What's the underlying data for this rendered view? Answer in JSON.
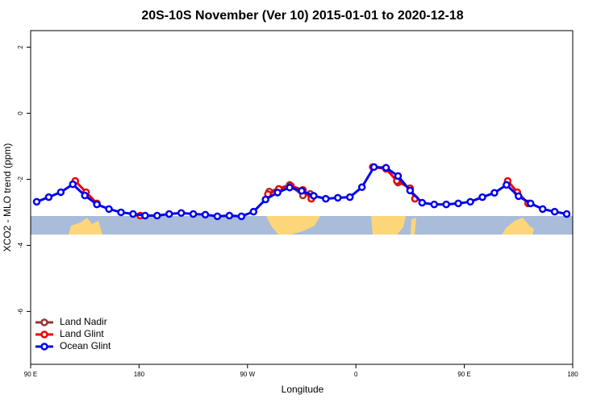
{
  "chart_data": {
    "type": "line",
    "title": "20S-10S November (Ver 10)   2015-01-01 to 2020-12-18",
    "x_label": "Longitude",
    "y_label": "XCO2 - MLO trend (ppm)",
    "xlim": [
      90,
      540
    ],
    "xticks": [
      {
        "value": 90,
        "label": "90 E"
      },
      180,
      {
        "value": 270,
        "label": "90 W"
      },
      {
        "value": 360,
        "label": "0"
      },
      {
        "value": 450,
        "label": "90 E"
      },
      {
        "value": 540,
        "label": "180"
      }
    ],
    "ylim": [
      -7.6,
      2.5
    ],
    "yticks": [
      -6,
      -4,
      -2,
      0,
      2
    ],
    "grid": false,
    "legend": "bottom-left",
    "series": [
      {
        "name": "Land Nadir",
        "color": "#993333",
        "x": [
          288,
          305,
          316,
          322,
          350,
          395
        ],
        "values": [
          -2.37,
          -2.17,
          -2.49,
          -2.44,
          null,
          -2.1
        ]
      },
      {
        "name": "Land Glint",
        "color": "#ee0000",
        "x": [
          127,
          136,
          145,
          160,
          181,
          200,
          287,
          296,
          306,
          316,
          323,
          340,
          374,
          385,
          394,
          405,
          409,
          420,
          486,
          494,
          503
        ],
        "values": [
          -2.05,
          -2.39,
          -2.73,
          null,
          -3.1,
          null,
          -2.45,
          -2.29,
          -2.2,
          -2.32,
          -2.59,
          null,
          -1.63,
          -1.68,
          -2.05,
          -2.27,
          -2.59,
          null,
          -2.05,
          -2.39,
          -2.73
        ]
      },
      {
        "name": "Ocean Glint",
        "color": "#0000ee",
        "x": [
          95,
          105,
          115,
          125,
          135,
          145,
          155,
          165,
          175,
          185,
          195,
          205,
          215,
          225,
          235,
          245,
          255,
          265,
          275,
          285,
          295,
          305,
          315,
          325,
          335,
          345,
          355,
          365,
          375,
          385,
          395,
          405,
          415,
          425,
          435,
          445,
          455,
          465,
          475,
          485,
          495,
          505,
          515,
          525,
          535
        ],
        "values": [
          -2.68,
          -2.54,
          -2.39,
          -2.15,
          -2.49,
          -2.76,
          -2.9,
          -3.0,
          -3.05,
          -3.1,
          -3.1,
          -3.05,
          -3.02,
          -3.05,
          -3.07,
          -3.12,
          -3.1,
          -3.12,
          -2.98,
          -2.61,
          -2.4,
          -2.25,
          -2.35,
          -2.5,
          -2.59,
          -2.56,
          -2.54,
          -2.24,
          -1.63,
          -1.65,
          -1.9,
          -2.34,
          -2.71,
          -2.76,
          -2.76,
          -2.73,
          -2.68,
          -2.54,
          -2.41,
          -2.17,
          -2.51,
          -2.73,
          -2.9,
          -2.98,
          -3.05
        ]
      }
    ]
  }
}
